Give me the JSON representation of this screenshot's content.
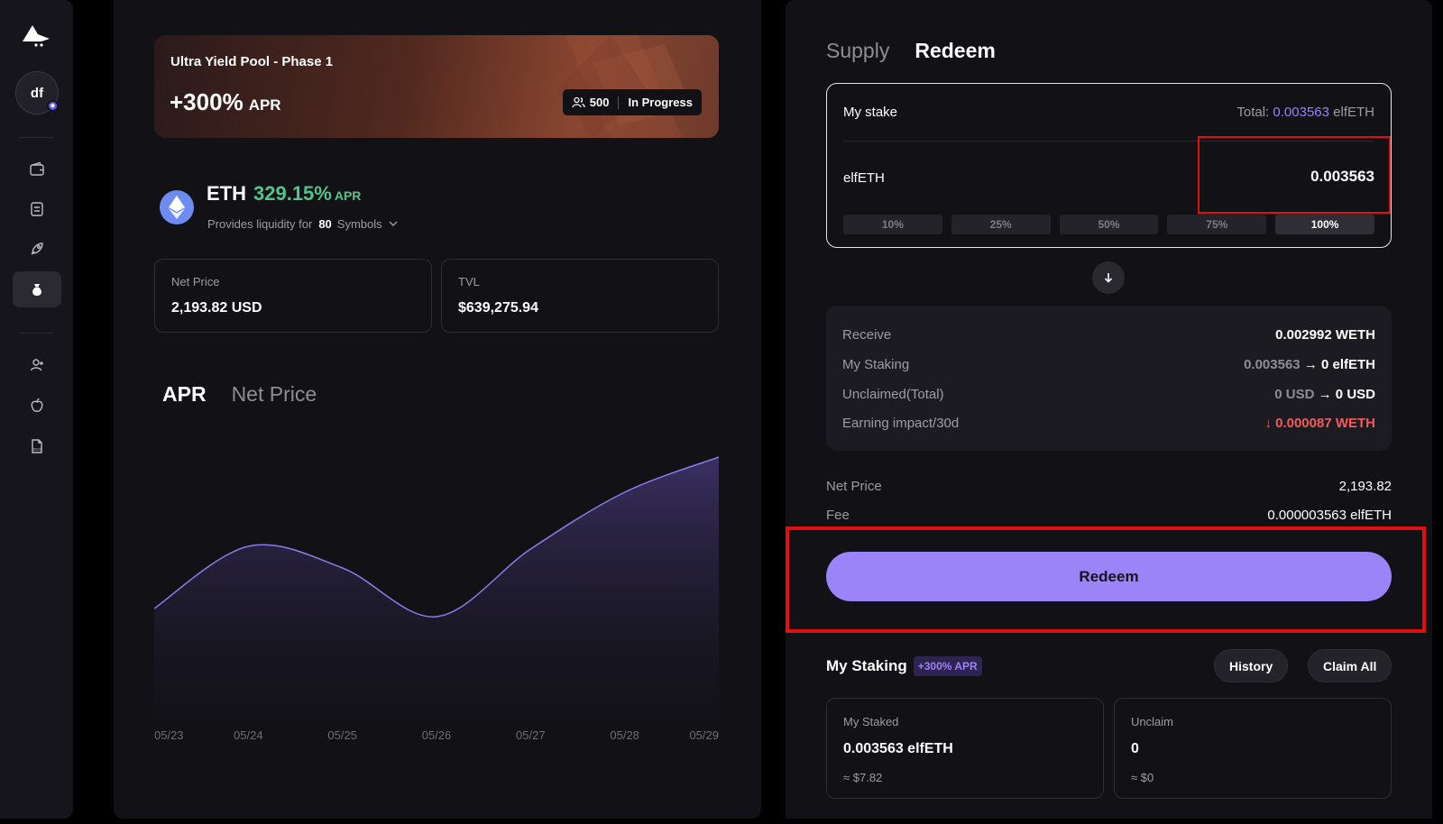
{
  "sidebar": {
    "avatar_initials": "df",
    "nav_items": [
      {
        "icon": "wallet-icon"
      },
      {
        "icon": "swap-icon"
      },
      {
        "icon": "rocket-icon"
      },
      {
        "icon": "money-bag-icon",
        "active": true
      },
      {
        "icon": "user-plus-icon"
      },
      {
        "icon": "apple-icon"
      },
      {
        "icon": "doc-icon"
      }
    ]
  },
  "pool": {
    "title": "Ultra Yield Pool - Phase 1",
    "apr_value": "+300%",
    "apr_unit": "APR",
    "participants": "500",
    "status": "In Progress"
  },
  "asset": {
    "symbol": "ETH",
    "apr_value": "329.15%",
    "apr_unit": "APR",
    "liquidity_prefix": "Provides liquidity for",
    "liquidity_count": "80",
    "liquidity_suffix": "Symbols"
  },
  "stats": {
    "net_price_label": "Net Price",
    "net_price_value": "2,193.82 USD",
    "tvl_label": "TVL",
    "tvl_value": "$639,275.94"
  },
  "chart_tabs": {
    "apr": "APR",
    "net_price": "Net Price"
  },
  "chart_data": {
    "type": "area",
    "title": "",
    "xlabel": "",
    "ylabel": "",
    "x": [
      "05/23",
      "05/24",
      "05/25",
      "05/26",
      "05/27",
      "05/28",
      "05/29"
    ],
    "series": [
      {
        "values": [
          40,
          63,
          55,
          37,
          62,
          83,
          96
        ]
      }
    ],
    "ylim": [
      0,
      100
    ],
    "grid": false,
    "line_color": "#8f7ae8"
  },
  "redeem_panel": {
    "tab_supply": "Supply",
    "tab_redeem": "Redeem",
    "stake_title": "My stake",
    "total_label": "Total:",
    "total_value": "0.003563",
    "total_unit": "elfETH",
    "token": "elfETH",
    "amount": "0.003563",
    "percent_options": [
      "10%",
      "25%",
      "50%",
      "75%",
      "100%"
    ],
    "receive_label": "Receive",
    "receive_value": "0.002992 WETH",
    "my_staking_label": "My Staking",
    "my_staking_from": "0.003563",
    "my_staking_to": "→ 0 elfETH",
    "unclaimed_label": "Unclaimed(Total)",
    "unclaimed_from": "0 USD",
    "unclaimed_to": "→ 0 USD",
    "earning_label": "Earning impact/30d",
    "earning_value": "↓ 0.000087 WETH",
    "net_price_label": "Net Price",
    "net_price_value": "2,193.82",
    "fee_label": "Fee",
    "fee_value": "0.000003563 elfETH",
    "redeem_button": "Redeem"
  },
  "my_staking": {
    "title": "My Staking",
    "apr_badge": "+300% APR",
    "history_button": "History",
    "claim_all_button": "Claim All",
    "staked_label": "My Staked",
    "staked_value": "0.003563 elfETH",
    "staked_usd": "≈ $7.82",
    "unclaim_label": "Unclaim",
    "unclaim_value": "0",
    "unclaim_usd": "≈ $0"
  },
  "colors": {
    "accent": "#9a84f8",
    "positive": "#52c48a",
    "negative": "#f25c5c",
    "highlight": "#e01010"
  }
}
